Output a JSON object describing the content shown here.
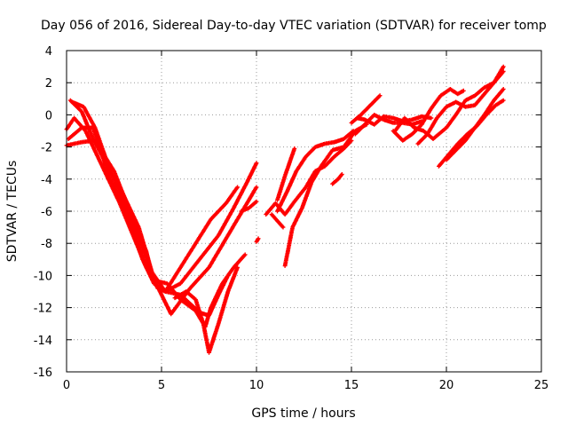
{
  "chart_data": {
    "type": "scatter",
    "title": "Day 056 of 2016, Sidereal Day-to-day VTEC variation (SDTVAR) for receiver tomp",
    "xlabel": "GPS time / hours",
    "ylabel": "SDTVAR / TECUs",
    "xlim": [
      0,
      25
    ],
    "ylim": [
      -16,
      4
    ],
    "x_ticks": [
      0,
      5,
      10,
      15,
      20,
      25
    ],
    "y_ticks": [
      -16,
      -14,
      -12,
      -10,
      -8,
      -6,
      -4,
      -2,
      0,
      2,
      4
    ],
    "grid": true,
    "legend": "none",
    "marker": "plus",
    "color": "#ff0000",
    "tracks": [
      [
        [
          0.0,
          -1.9
        ],
        [
          0.8,
          -1.7
        ],
        [
          1.5,
          -1.6
        ],
        [
          2.5,
          -3.5
        ],
        [
          3.5,
          -6.5
        ],
        [
          4.2,
          -8.5
        ],
        [
          4.5,
          -10.0
        ],
        [
          5.0,
          -11.2
        ],
        [
          5.5,
          -12.4
        ],
        [
          6.5,
          -10.8
        ],
        [
          7.5,
          -9.5
        ],
        [
          8.5,
          -7.5
        ],
        [
          9.5,
          -5.5
        ],
        [
          10.0,
          -4.5
        ]
      ],
      [
        [
          0.0,
          -0.9
        ],
        [
          0.4,
          -0.2
        ],
        [
          1.0,
          -1.0
        ],
        [
          1.8,
          -3.0
        ],
        [
          2.8,
          -5.5
        ],
        [
          3.5,
          -7.5
        ],
        [
          4.2,
          -9.5
        ],
        [
          4.8,
          -10.8
        ],
        [
          5.2,
          -11.0
        ],
        [
          6.0,
          -10.5
        ],
        [
          7.0,
          -9.0
        ],
        [
          8.0,
          -7.5
        ],
        [
          8.8,
          -5.8
        ],
        [
          9.5,
          -4.2
        ],
        [
          10.0,
          -3.0
        ]
      ],
      [
        [
          0.2,
          0.9
        ],
        [
          0.8,
          0.2
        ],
        [
          1.4,
          -1.5
        ],
        [
          2.2,
          -3.3
        ],
        [
          3.0,
          -5.0
        ],
        [
          3.8,
          -7.0
        ],
        [
          4.5,
          -9.8
        ],
        [
          5.2,
          -11.0
        ],
        [
          6.0,
          -11.2
        ],
        [
          7.0,
          -12.3
        ],
        [
          7.5,
          -12.5
        ],
        [
          8.0,
          -11.2
        ],
        [
          8.5,
          -10.0
        ]
      ],
      [
        [
          0.3,
          0.8
        ],
        [
          0.9,
          0.5
        ],
        [
          1.5,
          -0.8
        ],
        [
          2.3,
          -3.5
        ],
        [
          3.2,
          -5.8
        ],
        [
          4.0,
          -8.3
        ],
        [
          4.6,
          -10.3
        ],
        [
          5.3,
          -10.5
        ],
        [
          6.0,
          -11.5
        ],
        [
          6.8,
          -12.2
        ],
        [
          7.3,
          -13.2
        ],
        [
          7.6,
          -12.0
        ],
        [
          8.2,
          -10.5
        ],
        [
          8.8,
          -9.5
        ],
        [
          9.4,
          -8.7
        ]
      ],
      [
        [
          0.1,
          -1.5
        ],
        [
          0.8,
          -0.8
        ],
        [
          1.4,
          -0.8
        ],
        [
          2.3,
          -4.0
        ],
        [
          3.2,
          -6.2
        ],
        [
          4.0,
          -9.0
        ],
        [
          4.6,
          -10.5
        ],
        [
          5.2,
          -11.0
        ],
        [
          6.0,
          -9.5
        ],
        [
          6.8,
          -8.0
        ],
        [
          7.6,
          -6.5
        ],
        [
          8.4,
          -5.5
        ],
        [
          9.0,
          -4.5
        ]
      ],
      [
        [
          5.7,
          -11.4
        ],
        [
          6.3,
          -11.0
        ],
        [
          6.8,
          -11.5
        ],
        [
          7.2,
          -13.0
        ],
        [
          7.5,
          -14.8
        ],
        [
          8.0,
          -13.0
        ],
        [
          8.5,
          -11.0
        ],
        [
          9.0,
          -9.5
        ]
      ],
      [
        [
          9.2,
          -6.0
        ],
        [
          9.6,
          -5.8
        ],
        [
          10.0,
          -5.4
        ]
      ],
      [
        [
          10.5,
          -6.2
        ],
        [
          11.0,
          -5.5
        ],
        [
          11.5,
          -6.2
        ],
        [
          12.0,
          -5.4
        ],
        [
          12.6,
          -4.5
        ],
        [
          13.1,
          -3.5
        ],
        [
          13.6,
          -3.2
        ],
        [
          14.1,
          -2.6
        ],
        [
          14.6,
          -2.1
        ],
        [
          15.0,
          -1.6
        ]
      ],
      [
        [
          11.1,
          -6.0
        ],
        [
          11.6,
          -4.8
        ],
        [
          12.1,
          -3.5
        ],
        [
          12.6,
          -2.6
        ],
        [
          13.1,
          -2.0
        ],
        [
          13.6,
          -1.8
        ],
        [
          14.1,
          -1.7
        ],
        [
          14.6,
          -1.5
        ],
        [
          15.1,
          -1.0
        ]
      ],
      [
        [
          11.5,
          -9.4
        ],
        [
          11.9,
          -7.0
        ],
        [
          12.4,
          -5.8
        ],
        [
          12.9,
          -4.2
        ],
        [
          13.4,
          -3.2
        ],
        [
          14.0,
          -2.2
        ],
        [
          14.6,
          -2.0
        ],
        [
          15.2,
          -1.0
        ],
        [
          15.8,
          -0.6
        ]
      ],
      [
        [
          11.1,
          -5.3
        ],
        [
          11.5,
          -3.8
        ],
        [
          12.0,
          -2.1
        ]
      ],
      [
        [
          10.8,
          -6.2
        ],
        [
          11.1,
          -6.6
        ],
        [
          11.4,
          -7.0
        ]
      ],
      [
        [
          14.0,
          -4.3
        ],
        [
          14.3,
          -4.0
        ],
        [
          14.5,
          -3.7
        ]
      ],
      [
        [
          15.0,
          -0.5
        ],
        [
          15.5,
          0.0
        ],
        [
          16.0,
          0.6
        ],
        [
          16.5,
          1.2
        ]
      ],
      [
        [
          15.2,
          -1.2
        ],
        [
          15.7,
          -0.6
        ],
        [
          16.2,
          0.0
        ],
        [
          16.7,
          -0.3
        ],
        [
          17.2,
          -0.5
        ],
        [
          17.7,
          -0.5
        ],
        [
          18.2,
          -0.6
        ],
        [
          18.7,
          -0.4
        ]
      ],
      [
        [
          15.3,
          -0.2
        ],
        [
          15.7,
          -0.3
        ],
        [
          16.2,
          -0.6
        ],
        [
          16.7,
          -0.1
        ],
        [
          17.2,
          -0.2
        ],
        [
          17.7,
          -0.4
        ],
        [
          18.2,
          -0.3
        ],
        [
          18.7,
          -0.1
        ],
        [
          19.2,
          -0.2
        ]
      ],
      [
        [
          17.2,
          -1.0
        ],
        [
          17.7,
          -1.6
        ],
        [
          18.2,
          -1.2
        ],
        [
          18.7,
          -0.6
        ],
        [
          19.2,
          0.4
        ],
        [
          19.7,
          1.2
        ],
        [
          20.2,
          1.6
        ],
        [
          20.6,
          1.3
        ],
        [
          20.9,
          1.5
        ]
      ],
      [
        [
          17.3,
          -1.0
        ],
        [
          17.8,
          -0.2
        ],
        [
          18.3,
          -0.8
        ],
        [
          18.8,
          -1.0
        ],
        [
          19.3,
          -1.5
        ],
        [
          19.6,
          -1.2
        ],
        [
          20.0,
          -0.8
        ],
        [
          20.5,
          0.0
        ],
        [
          21.0,
          0.9
        ],
        [
          21.5,
          1.2
        ],
        [
          22.0,
          1.7
        ],
        [
          22.5,
          2.0
        ],
        [
          23.0,
          2.7
        ]
      ],
      [
        [
          18.5,
          -1.8
        ],
        [
          19.0,
          -1.2
        ],
        [
          19.5,
          -0.2
        ],
        [
          20.0,
          0.5
        ],
        [
          20.5,
          0.8
        ],
        [
          21.0,
          0.5
        ],
        [
          21.5,
          0.6
        ],
        [
          22.0,
          1.3
        ],
        [
          22.5,
          2.0
        ],
        [
          23.0,
          3.0
        ]
      ],
      [
        [
          19.6,
          -3.2
        ],
        [
          20.1,
          -2.5
        ],
        [
          20.6,
          -1.8
        ],
        [
          21.1,
          -1.2
        ],
        [
          21.6,
          -0.7
        ],
        [
          22.1,
          0.0
        ],
        [
          22.6,
          0.6
        ],
        [
          23.0,
          0.9
        ]
      ],
      [
        [
          20.0,
          -2.8
        ],
        [
          20.5,
          -2.2
        ],
        [
          21.0,
          -1.6
        ],
        [
          21.5,
          -0.8
        ],
        [
          22.0,
          0.0
        ],
        [
          22.5,
          0.9
        ],
        [
          23.0,
          1.6
        ]
      ],
      [
        [
          10.0,
          -7.9
        ],
        [
          10.1,
          -7.7
        ]
      ]
    ]
  }
}
